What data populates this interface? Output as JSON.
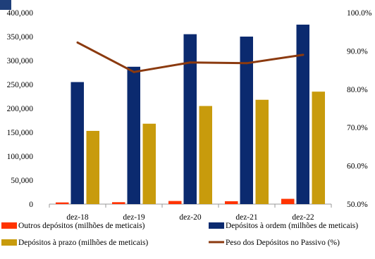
{
  "chart_data": {
    "type": "bar",
    "categories": [
      "dez-18",
      "dez-19",
      "dez-20",
      "dez-21",
      "dez-22"
    ],
    "series": [
      {
        "name": "Outros depósitos (milhões de meticais)",
        "kind": "bar",
        "axis": "left",
        "color": "#ff3300",
        "values": [
          3500,
          4000,
          6500,
          6000,
          11000
        ]
      },
      {
        "name": "Depósitos à ordem (milhões de meticais)",
        "kind": "bar",
        "axis": "left",
        "color": "#0b2a6f",
        "values": [
          255000,
          287000,
          355000,
          350000,
          375000
        ]
      },
      {
        "name": "Depósitos à prazo (milhões de meticais)",
        "kind": "bar",
        "axis": "left",
        "color": "#c89b0c",
        "values": [
          153000,
          168000,
          205000,
          218000,
          235000
        ]
      },
      {
        "name": "Peso dos Depósitos no Passivo (%)",
        "kind": "line",
        "axis": "right",
        "color": "#8b3a0f",
        "values": [
          92.2,
          84.5,
          87.0,
          86.8,
          89.0
        ]
      }
    ],
    "left_axis": {
      "min": 0,
      "max": 400000,
      "ticks": [
        "0",
        "50,000",
        "100,000",
        "150,000",
        "200,000",
        "250,000",
        "300,000",
        "350,000",
        "400,000"
      ]
    },
    "right_axis": {
      "min": 50,
      "max": 100,
      "ticks": [
        "50.0%",
        "60.0%",
        "70.0%",
        "80.0%",
        "90.0%",
        "100.0%"
      ]
    },
    "grid": false,
    "legend_position": "bottom"
  }
}
